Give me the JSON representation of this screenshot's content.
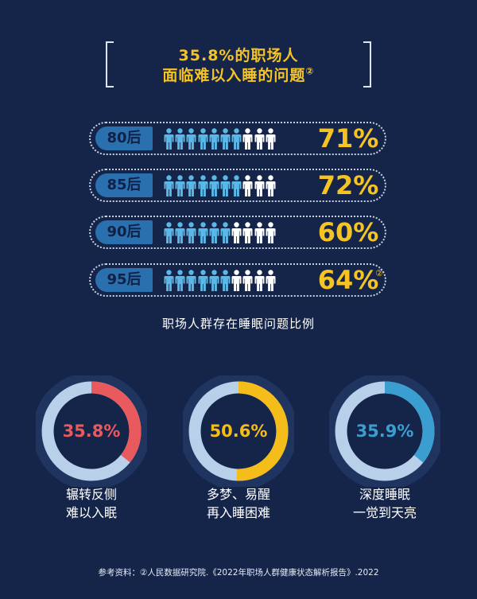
{
  "header": {
    "title_line1": "35.8%的职场人",
    "title_line2": "面临难以入睡的问题",
    "title_mark": "②"
  },
  "chart_data": [
    {
      "type": "bar",
      "categories": [
        "80后",
        "85后",
        "90后",
        "95后"
      ],
      "values": [
        71,
        72,
        60,
        64
      ],
      "value_labels": [
        "71%",
        "72%",
        "60%",
        "64%"
      ],
      "icon_counts": {
        "total": 10,
        "highlighted": [
          7,
          7,
          6,
          6
        ]
      },
      "value_mark": "②",
      "caption": "职场人群存在睡眠问题比例",
      "colors": {
        "highlighted": "#5bb8e6",
        "other": "#ffffff",
        "value": "#f6c324",
        "label_bg": "#2a6fae"
      }
    },
    {
      "type": "pie",
      "style": "donut",
      "items": [
        {
          "value": 35.8,
          "value_label": "35.8%",
          "label_line1": "辗转反侧",
          "label_line2": "难以入眠",
          "color": "#e85a5e"
        },
        {
          "value": 50.6,
          "value_label": "50.6%",
          "label_line1": "多梦、易醒",
          "label_line2": "再入睡困难",
          "color": "#f5bd1a"
        },
        {
          "value": 35.9,
          "value_label": "35.9%",
          "label_line1": "深度睡眠",
          "label_line2": "一觉到天亮",
          "color": "#3a9fd0"
        }
      ],
      "track_color": "#b9d0ea"
    }
  ],
  "footer": {
    "source": "参考资料：②人民数据研究院.《2022年职场人群健康状态解析报告》.2022"
  }
}
